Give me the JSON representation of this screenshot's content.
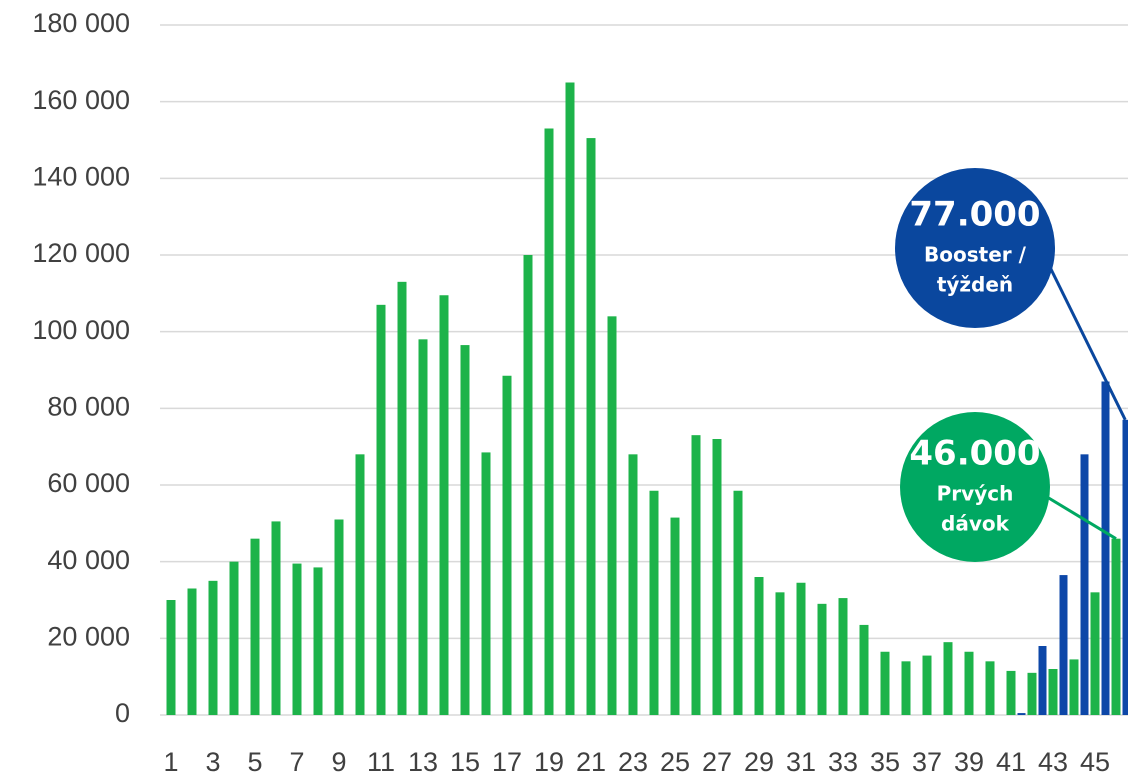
{
  "chart_data": {
    "type": "bar",
    "categories": [
      "1",
      null,
      "3",
      null,
      "5",
      null,
      "7",
      null,
      "9",
      null,
      "11",
      null,
      "13",
      null,
      "15",
      null,
      "17",
      null,
      "19",
      null,
      "21",
      null,
      "23",
      null,
      "25",
      null,
      "27",
      null,
      "29",
      null,
      "31",
      null,
      "33",
      null,
      "35",
      null,
      "37",
      null,
      "39",
      null,
      "41",
      null,
      "43",
      null,
      "45",
      null
    ],
    "series": [
      {
        "color": "#1db34a",
        "values": [
          30000,
          33000,
          35000,
          40000,
          46000,
          50500,
          39500,
          38500,
          51000,
          68000,
          107000,
          113000,
          98000,
          109500,
          96500,
          68500,
          88500,
          120000,
          153000,
          165000,
          150500,
          104000,
          68000,
          58500,
          51500,
          73000,
          72000,
          58500,
          36000,
          32000,
          34500,
          29000,
          30500,
          23500,
          16500,
          14000,
          15500,
          19000,
          16500,
          14000,
          11500,
          11000,
          12000,
          14500,
          32000,
          46000
        ]
      },
      {
        "color": "#0d47a8",
        "values": [
          null,
          null,
          null,
          null,
          null,
          null,
          null,
          null,
          null,
          null,
          null,
          null,
          null,
          null,
          null,
          null,
          null,
          null,
          null,
          null,
          null,
          null,
          null,
          null,
          null,
          null,
          null,
          null,
          null,
          null,
          null,
          null,
          null,
          null,
          null,
          null,
          null,
          null,
          null,
          null,
          500,
          18000,
          36500,
          68000,
          87000,
          77000
        ]
      }
    ],
    "ylim": [
      0,
      180000
    ],
    "yticks": [
      0,
      {
        "value": 20000,
        "label": "20 000"
      },
      {
        "value": 40000,
        "label": "40 000"
      },
      {
        "value": 60000,
        "label": "60 000"
      },
      {
        "value": 80000,
        "label": "80 000"
      },
      {
        "value": 100000,
        "label": "100 000"
      },
      {
        "value": 120000,
        "label": "120 000"
      },
      {
        "value": 140000,
        "label": "140 000"
      },
      {
        "value": 160000,
        "label": "160 000"
      },
      {
        "value": 180000,
        "label": "180 000"
      }
    ],
    "grid": true,
    "annotations": [
      {
        "text": "77.000",
        "lines": [
          "Booster /",
          "týždeň"
        ],
        "color": "#0a479e"
      },
      {
        "text": "46.000",
        "lines": [
          "Prvých",
          "dávok"
        ],
        "color": "#00a862"
      }
    ]
  }
}
